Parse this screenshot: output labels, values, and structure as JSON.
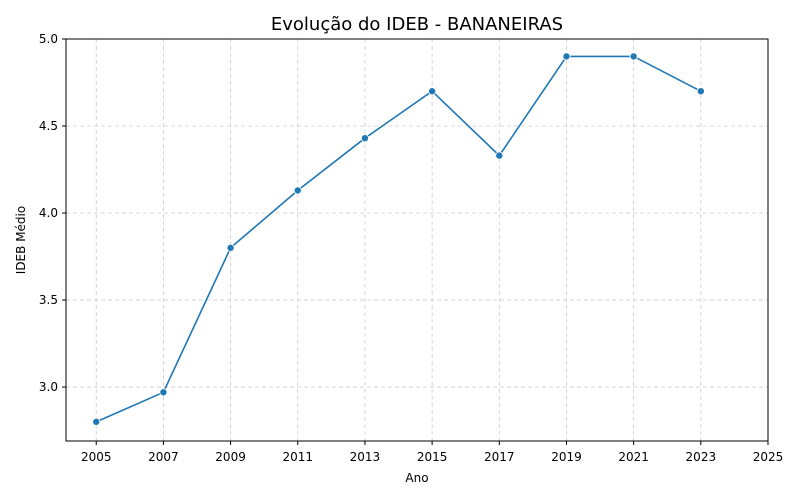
{
  "chart_data": {
    "type": "line",
    "title": "Evolução do IDEB - BANANEIRAS",
    "xlabel": "Ano",
    "ylabel": "IDEB Médio",
    "xlim": [
      2004.1,
      2025
    ],
    "ylim": [
      2.69,
      5.0
    ],
    "xticks": [
      2005,
      2007,
      2009,
      2011,
      2013,
      2015,
      2017,
      2019,
      2021,
      2023,
      2025
    ],
    "yticks": [
      3.0,
      3.5,
      4.0,
      4.5,
      5.0
    ],
    "ytick_labels": [
      "3.0",
      "3.5",
      "4.0",
      "4.5",
      "5.0"
    ],
    "grid": true,
    "series": [
      {
        "color": "#1f77b4",
        "marker": "circle",
        "x": [
          2005,
          2007,
          2009,
          2011,
          2013,
          2015,
          2017,
          2019,
          2021,
          2023
        ],
        "y": [
          2.8,
          2.97,
          3.8,
          4.13,
          4.43,
          4.7,
          4.33,
          4.9,
          4.9,
          4.7
        ]
      }
    ]
  }
}
